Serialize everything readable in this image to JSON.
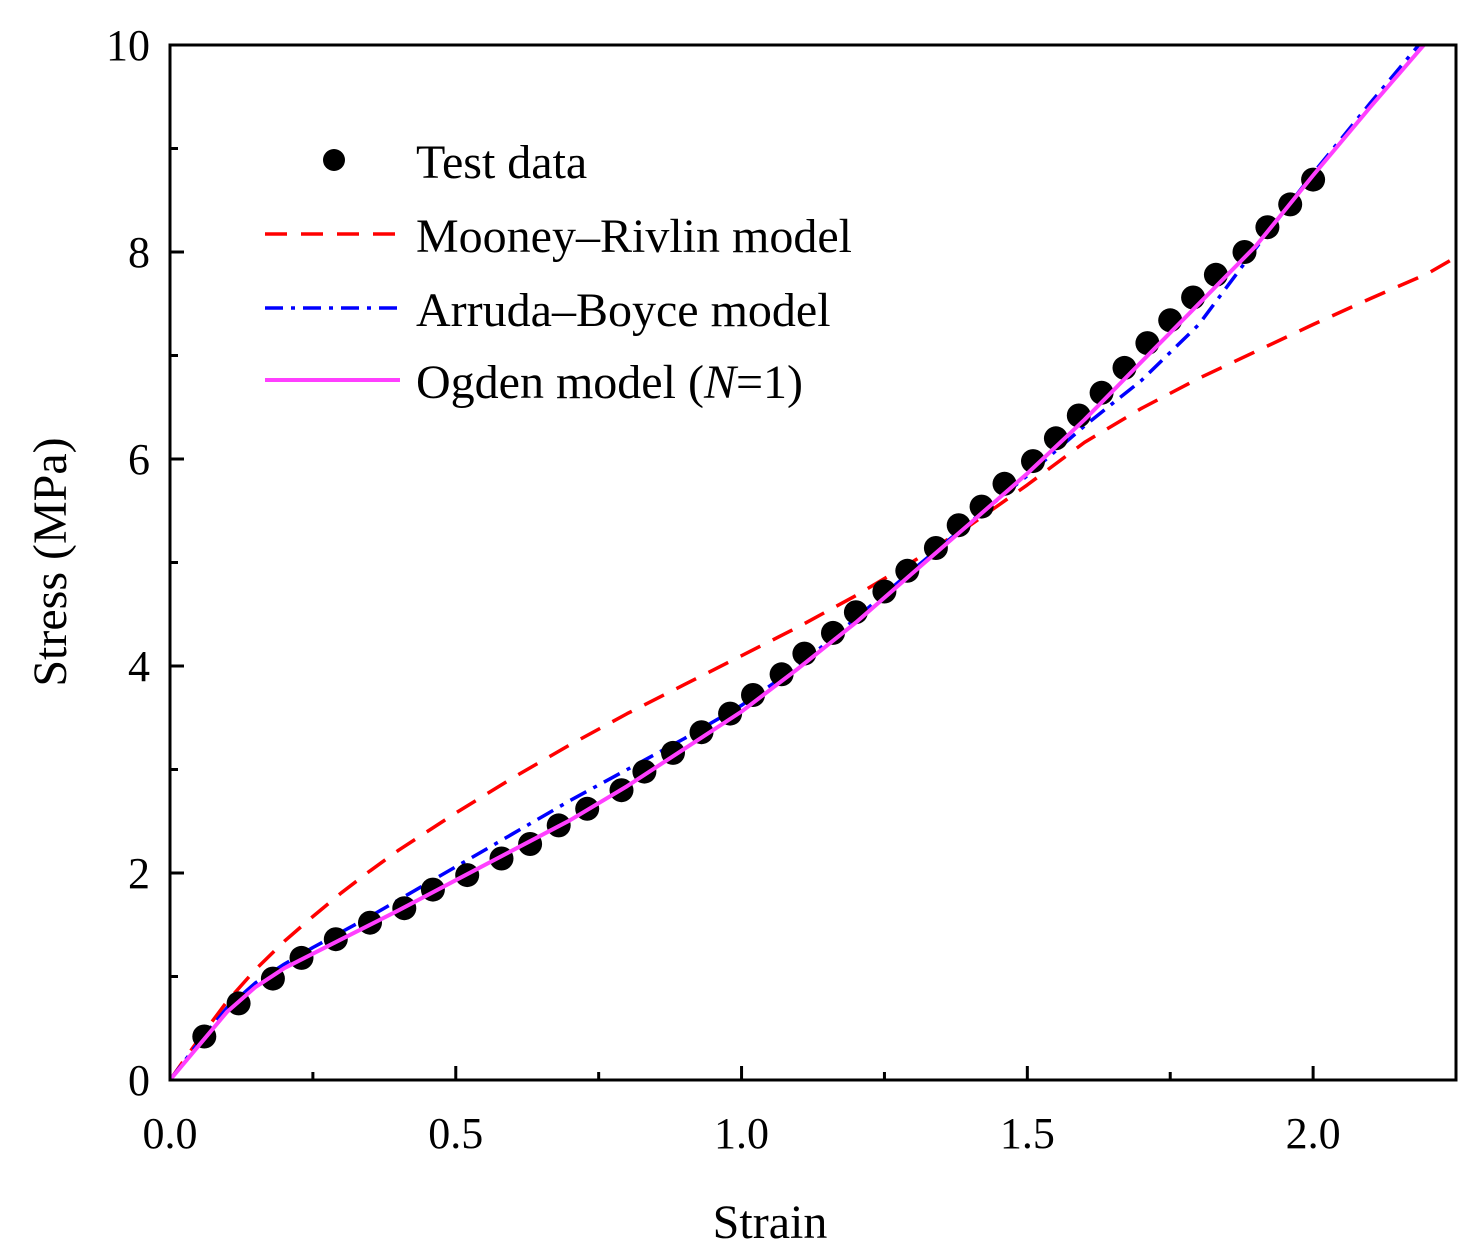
{
  "chart_data": {
    "type": "scatter",
    "title": "",
    "xlabel": "Strain",
    "ylabel": "Stress (MPa)",
    "xlim": [
      0,
      2.25
    ],
    "ylim": [
      0,
      10
    ],
    "x_ticks": [
      0.0,
      0.5,
      1.0,
      1.5,
      2.0
    ],
    "x_tick_labels": [
      "0.0",
      "0.5",
      "1.0",
      "1.5",
      "2.0"
    ],
    "y_ticks": [
      0,
      2,
      4,
      6,
      8,
      10
    ],
    "y_tick_labels": [
      "0",
      "2",
      "4",
      "6",
      "8",
      "10"
    ],
    "x_minor_step": 0.25,
    "y_minor_step": 1,
    "grid": false,
    "legend_position": "top-left",
    "series": [
      {
        "name": "Test data",
        "style": "markers",
        "color": "#000000",
        "x": [
          0.06,
          0.12,
          0.18,
          0.23,
          0.29,
          0.35,
          0.41,
          0.46,
          0.52,
          0.58,
          0.63,
          0.68,
          0.73,
          0.79,
          0.83,
          0.88,
          0.93,
          0.98,
          1.02,
          1.07,
          1.11,
          1.16,
          1.2,
          1.25,
          1.29,
          1.34,
          1.38,
          1.42,
          1.46,
          1.51,
          1.55,
          1.59,
          1.63,
          1.67,
          1.71,
          1.75,
          1.79,
          1.83,
          1.88,
          1.92,
          1.96,
          2.0
        ],
        "y": [
          0.42,
          0.74,
          0.98,
          1.18,
          1.36,
          1.52,
          1.66,
          1.84,
          1.98,
          2.14,
          2.28,
          2.46,
          2.62,
          2.8,
          2.98,
          3.16,
          3.36,
          3.54,
          3.72,
          3.92,
          4.12,
          4.32,
          4.52,
          4.72,
          4.92,
          5.14,
          5.36,
          5.54,
          5.76,
          5.98,
          6.2,
          6.42,
          6.64,
          6.88,
          7.12,
          7.34,
          7.56,
          7.78,
          8.0,
          8.24,
          8.46,
          8.7
        ]
      },
      {
        "name": "Mooney–Rivlin model",
        "style": "dashed",
        "color": "#ff0000",
        "x": [
          0.0,
          0.05,
          0.1,
          0.15,
          0.2,
          0.25,
          0.3,
          0.35,
          0.4,
          0.5,
          0.6,
          0.7,
          0.8,
          0.9,
          1.0,
          1.1,
          1.2,
          1.3,
          1.4,
          1.5,
          1.6,
          1.7,
          1.8,
          1.9,
          2.0,
          2.1,
          2.2,
          2.25
        ],
        "y": [
          0.0,
          0.39,
          0.76,
          1.07,
          1.34,
          1.58,
          1.81,
          2.02,
          2.22,
          2.58,
          2.92,
          3.24,
          3.54,
          3.82,
          4.1,
          4.38,
          4.68,
          5.01,
          5.36,
          5.75,
          6.16,
          6.49,
          6.78,
          7.04,
          7.3,
          7.55,
          7.79,
          7.95
        ]
      },
      {
        "name": "Arruda–Boyce model",
        "style": "dashdot",
        "color": "#0000ff",
        "x": [
          0.0,
          0.05,
          0.1,
          0.15,
          0.2,
          0.25,
          0.3,
          0.35,
          0.4,
          0.5,
          0.6,
          0.7,
          0.8,
          0.9,
          1.0,
          1.1,
          1.2,
          1.3,
          1.4,
          1.5,
          1.6,
          1.7,
          1.8,
          1.9,
          2.0,
          2.1,
          2.2
        ],
        "y": [
          0.0,
          0.36,
          0.7,
          0.94,
          1.12,
          1.28,
          1.43,
          1.58,
          1.74,
          2.06,
          2.38,
          2.7,
          3.0,
          3.3,
          3.62,
          4.0,
          4.46,
          4.93,
          5.39,
          5.84,
          6.32,
          6.76,
          7.3,
          8.04,
          8.76,
          9.44,
          10.1
        ]
      },
      {
        "name": "Ogden model (N=1)",
        "style": "solid",
        "color": "#ff3fff",
        "x": [
          0.0,
          0.05,
          0.1,
          0.15,
          0.2,
          0.25,
          0.3,
          0.35,
          0.4,
          0.5,
          0.6,
          0.7,
          0.8,
          0.9,
          1.0,
          1.1,
          1.2,
          1.3,
          1.4,
          1.5,
          1.6,
          1.7,
          1.8,
          1.9,
          2.0,
          2.1,
          2.2
        ],
        "y": [
          0.0,
          0.33,
          0.66,
          0.9,
          1.08,
          1.22,
          1.36,
          1.5,
          1.64,
          1.93,
          2.22,
          2.51,
          2.84,
          3.2,
          3.56,
          3.98,
          4.42,
          4.9,
          5.38,
          5.86,
          6.38,
          6.94,
          7.5,
          8.06,
          8.74,
          9.4,
          10.04
        ]
      }
    ],
    "legend": {
      "test_label": "Test data",
      "mr_label": "Mooney–Rivlin model",
      "ab_label": "Arruda–Boyce model",
      "ogden_prefix": "Ogden model (",
      "ogden_italic": "N",
      "ogden_suffix": "=1)"
    }
  }
}
